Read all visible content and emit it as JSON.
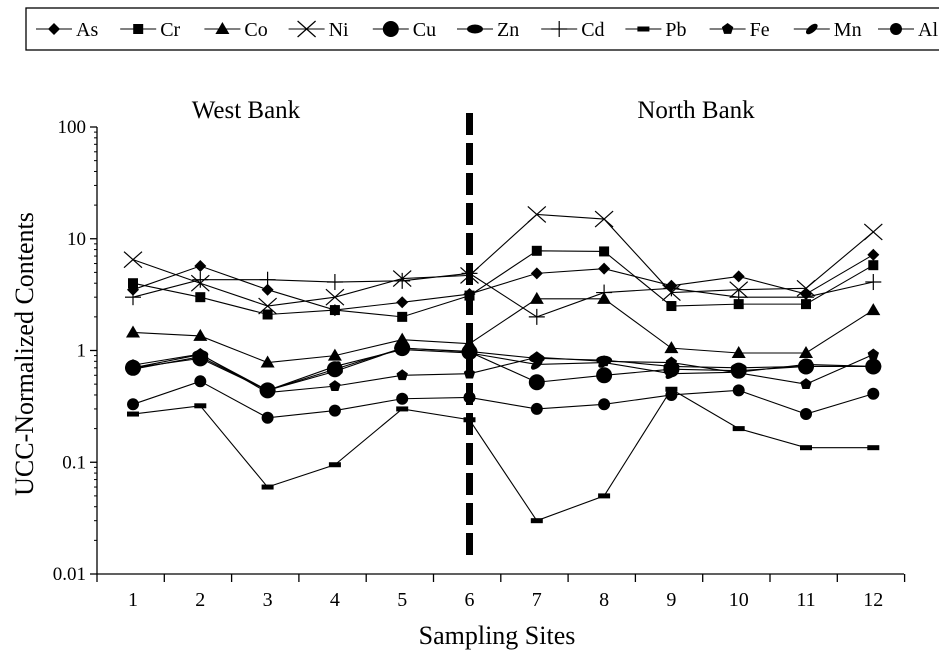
{
  "chart_data": {
    "type": "line",
    "title": "",
    "xlabel": "Sampling Sites",
    "ylabel": "UCC-Normalized Contents",
    "yscale": "log",
    "ylim": [
      0.01,
      100
    ],
    "ytick_labels": [
      "0.01",
      "0.1",
      "1",
      "10",
      "100"
    ],
    "yticks": [
      0.01,
      0.1,
      1,
      10,
      100
    ],
    "x": [
      1,
      2,
      3,
      4,
      5,
      6,
      7,
      8,
      9,
      10,
      11,
      12
    ],
    "xtick_labels": [
      "1",
      "2",
      "3",
      "4",
      "5",
      "6",
      "7",
      "8",
      "9",
      "10",
      "11",
      "12"
    ],
    "legend_position": "top",
    "divider": {
      "x": 6,
      "style": "dashed"
    },
    "annotations": [
      {
        "text": "West Bank",
        "x": 2.7,
        "y": 66
      },
      {
        "text": "North Bank",
        "x": 9.0,
        "y": 66
      }
    ],
    "series": [
      {
        "name": "As",
        "marker": "diamond",
        "values": [
          3.5,
          5.7,
          3.5,
          2.3,
          2.7,
          3.2,
          4.9,
          5.4,
          3.8,
          4.6,
          3.2,
          7.2
        ]
      },
      {
        "name": "Cr",
        "marker": "square",
        "values": [
          4.0,
          3.0,
          2.1,
          2.3,
          2.0,
          3.1,
          7.8,
          7.7,
          2.5,
          2.6,
          2.6,
          5.8
        ]
      },
      {
        "name": "Co",
        "marker": "triangle",
        "values": [
          1.45,
          1.35,
          0.78,
          0.9,
          1.25,
          1.15,
          2.9,
          2.9,
          1.05,
          0.95,
          0.95,
          2.3
        ]
      },
      {
        "name": "Ni",
        "marker": "x",
        "values": [
          6.5,
          4.0,
          2.5,
          3.0,
          4.4,
          4.7,
          16.5,
          15.0,
          3.3,
          3.5,
          3.6,
          11.5
        ]
      },
      {
        "name": "Cu",
        "marker": "circle-large",
        "values": [
          0.7,
          0.85,
          0.44,
          0.68,
          1.05,
          0.97,
          0.52,
          0.6,
          0.68,
          0.66,
          0.72,
          0.72
        ]
      },
      {
        "name": "Zn",
        "marker": "ellipse",
        "values": [
          0.7,
          0.92,
          0.44,
          0.65,
          1.05,
          0.98,
          0.85,
          0.82,
          0.72,
          0.7,
          0.72,
          0.72
        ]
      },
      {
        "name": "Cd",
        "marker": "plus",
        "values": [
          3.0,
          4.3,
          4.3,
          4.1,
          4.2,
          4.9,
          2.0,
          3.3,
          3.6,
          3.0,
          3.0,
          4.1
        ]
      },
      {
        "name": "Pb",
        "marker": "dash",
        "values": [
          0.27,
          0.32,
          0.06,
          0.095,
          0.3,
          0.24,
          0.03,
          0.05,
          0.45,
          0.2,
          0.135,
          0.135
        ]
      },
      {
        "name": "Fe",
        "marker": "pentagon",
        "values": [
          0.74,
          0.93,
          0.42,
          0.48,
          0.6,
          0.62,
          0.87,
          0.8,
          0.78,
          0.63,
          0.5,
          0.92
        ]
      },
      {
        "name": "Mn",
        "marker": "ellipse-tilt",
        "values": [
          0.68,
          0.88,
          0.44,
          0.72,
          1.02,
          0.95,
          0.75,
          0.78,
          0.62,
          0.64,
          0.75,
          0.72
        ]
      },
      {
        "name": "Al",
        "marker": "circle",
        "values": [
          0.33,
          0.53,
          0.25,
          0.29,
          0.37,
          0.38,
          0.3,
          0.33,
          0.4,
          0.44,
          0.27,
          0.41
        ]
      }
    ]
  }
}
